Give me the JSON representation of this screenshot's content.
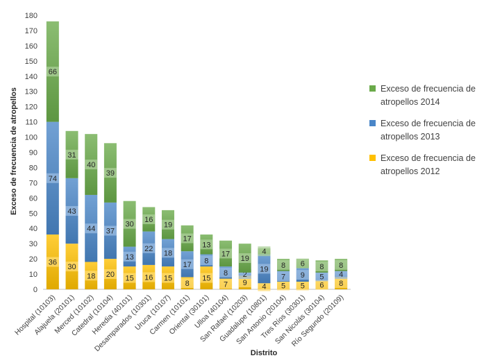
{
  "chart_data": {
    "type": "bar",
    "stacked": true,
    "xlabel": "Distrito",
    "ylabel": "Exceso de frecuencia de atropellos",
    "ylim": [
      0,
      180
    ],
    "yticks": [
      0,
      10,
      20,
      30,
      40,
      50,
      60,
      70,
      80,
      90,
      100,
      110,
      120,
      130,
      140,
      150,
      160,
      170,
      180
    ],
    "legend_position": "right",
    "categories": [
      "Hospital (10103)",
      "Alajuela (20101)",
      "Merced (10102)",
      "Catedral (10104)",
      "Heredia (40101)",
      "Desamparados (10301)",
      "Uruca (10107)",
      "Carmen (10101)",
      "Oriental (30101)",
      "Ulloa (40104)",
      "San Rafael (10203)",
      "Guadalupe (10801)",
      "San Antonio (20104)",
      "Tres Ríos (30301)",
      "San Nicolás (30104)",
      "Río Segundo (20109)"
    ],
    "series": [
      {
        "name": "Exceso de frecuencia de atropellos 2012",
        "color": "#ffc000",
        "values": [
          36,
          30,
          18,
          20,
          15,
          16,
          15,
          8,
          15,
          7,
          9,
          4,
          5,
          5,
          6,
          8
        ]
      },
      {
        "name": "Exceso de frecuencia de atropellos 2013",
        "color": "#4a86c8",
        "values": [
          74,
          43,
          44,
          37,
          13,
          22,
          18,
          17,
          8,
          8,
          2,
          19,
          7,
          9,
          5,
          4
        ]
      },
      {
        "name": "Exceso de frecuencia de atropellos 2014",
        "color": "#6aaa4a",
        "values": [
          66,
          31,
          40,
          39,
          30,
          16,
          19,
          17,
          13,
          17,
          19,
          4,
          8,
          6,
          8,
          8
        ]
      }
    ],
    "legend_lines": [
      [
        "Exceso de frecuencia de",
        "atropellos 2014"
      ],
      [
        "Exceso de frecuencia de",
        "atropellos 2013"
      ],
      [
        "Exceso de frecuencia de",
        "atropellos 2012"
      ]
    ]
  }
}
